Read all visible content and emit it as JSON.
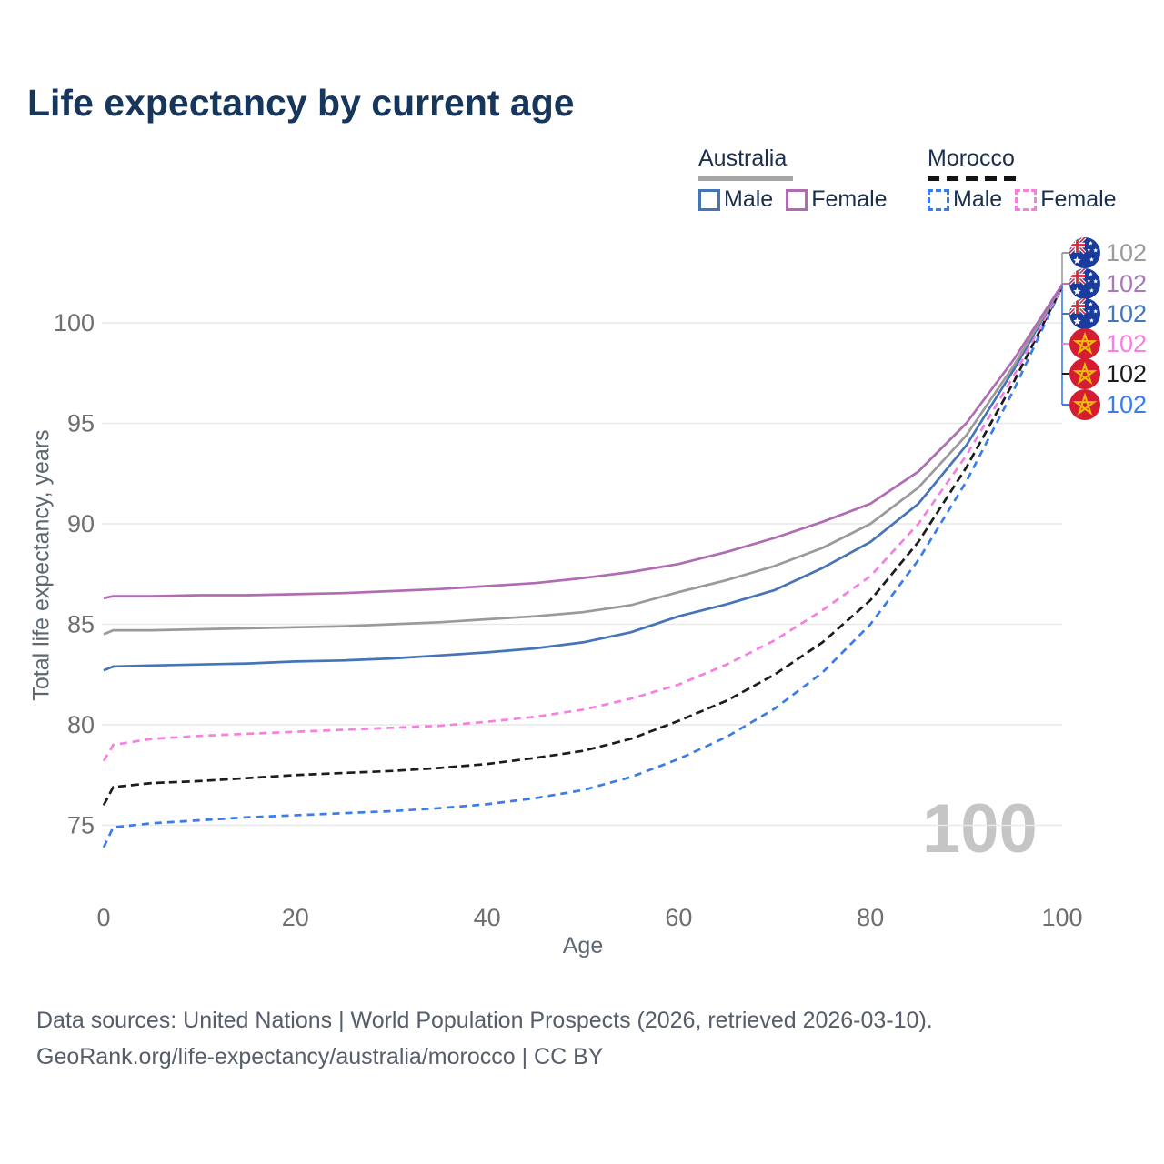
{
  "title": "Life expectancy by current age",
  "legend": {
    "groups": [
      {
        "label": "Australia",
        "underline_style": "solid",
        "underline_color": "#a6a6a6",
        "items": [
          {
            "label": "Male",
            "color": "#4674b8",
            "dashed": false
          },
          {
            "label": "Female",
            "color": "#b06cb3",
            "dashed": false
          }
        ]
      },
      {
        "label": "Morocco",
        "underline_style": "dashed",
        "underline_color": "#141414",
        "items": [
          {
            "label": "Male",
            "color": "#3a7ceb",
            "dashed": true
          },
          {
            "label": "Female",
            "color": "#f77fe0",
            "dashed": true
          }
        ]
      }
    ]
  },
  "watermark": "100",
  "footer": {
    "line1": "Data sources: United Nations | World Population Prospects (2026, retrieved 2026-03-10).",
    "line2": "GeoRank.org/life-expectancy/australia/morocco | CC BY"
  },
  "chart_data": {
    "type": "line",
    "title": "Life expectancy by current age",
    "xlabel": "Age",
    "ylabel": "Total life expectancy, years",
    "x_ticks": [
      "0",
      "20",
      "40",
      "60",
      "80",
      "100"
    ],
    "y_ticks": [
      "75",
      "80",
      "85",
      "90",
      "95",
      "100"
    ],
    "xlim": [
      0,
      100
    ],
    "ylim": [
      73.5,
      103
    ],
    "grid": "horizontal-only",
    "legend_position": "top-right",
    "ages": [
      0,
      1,
      5,
      10,
      15,
      20,
      25,
      30,
      35,
      40,
      45,
      50,
      55,
      60,
      65,
      70,
      75,
      80,
      85,
      90,
      95,
      100
    ],
    "series": [
      {
        "name": "Morocco Male",
        "country": "morocco",
        "sex": "male",
        "color": "#3a7ceb",
        "dash": "8 6",
        "values": [
          73.9,
          74.9,
          75.1,
          75.25,
          75.4,
          75.5,
          75.6,
          75.7,
          75.85,
          76.05,
          76.35,
          76.75,
          77.4,
          78.3,
          79.4,
          80.8,
          82.6,
          85.0,
          88.2,
          92.1,
          96.7,
          101.8
        ]
      },
      {
        "name": "Morocco Both sexes",
        "country": "morocco",
        "sex": "both",
        "color": "#1c1c1c",
        "dash": "9 5",
        "values": [
          76.0,
          76.9,
          77.1,
          77.2,
          77.35,
          77.5,
          77.6,
          77.7,
          77.85,
          78.05,
          78.35,
          78.7,
          79.3,
          80.2,
          81.2,
          82.5,
          84.1,
          86.2,
          89.1,
          92.8,
          97.1,
          101.8
        ]
      },
      {
        "name": "Morocco Female",
        "country": "morocco",
        "sex": "female",
        "color": "#f77fe0",
        "dash": "8 6",
        "values": [
          78.2,
          79.0,
          79.3,
          79.45,
          79.55,
          79.65,
          79.75,
          79.85,
          79.95,
          80.15,
          80.4,
          80.75,
          81.3,
          82.0,
          83.0,
          84.2,
          85.7,
          87.4,
          90.0,
          93.4,
          97.4,
          101.8
        ]
      },
      {
        "name": "Australia Male",
        "country": "australia",
        "sex": "male",
        "color": "#4674b8",
        "dash": null,
        "values": [
          82.7,
          82.9,
          82.95,
          83.0,
          83.05,
          83.15,
          83.2,
          83.3,
          83.45,
          83.6,
          83.8,
          84.1,
          84.6,
          85.4,
          86.0,
          86.7,
          87.8,
          89.1,
          91.0,
          93.9,
          97.7,
          101.9
        ]
      },
      {
        "name": "Australia Both sexes",
        "country": "australia",
        "sex": "both",
        "color": "#9a9a9a",
        "dash": null,
        "values": [
          84.5,
          84.7,
          84.7,
          84.75,
          84.8,
          84.85,
          84.9,
          85.0,
          85.1,
          85.25,
          85.4,
          85.6,
          85.95,
          86.6,
          87.2,
          87.9,
          88.8,
          90.0,
          91.8,
          94.4,
          97.9,
          101.9
        ]
      },
      {
        "name": "Australia Female",
        "country": "australia",
        "sex": "female",
        "color": "#b06cb3",
        "dash": null,
        "values": [
          86.3,
          86.4,
          86.4,
          86.45,
          86.45,
          86.5,
          86.55,
          86.65,
          86.75,
          86.9,
          87.05,
          87.3,
          87.6,
          88.0,
          88.6,
          89.3,
          90.1,
          91.0,
          92.6,
          95.0,
          98.2,
          101.9
        ]
      }
    ],
    "end_labels": [
      {
        "country": "australia",
        "text": "102",
        "color": "#9b9b9b"
      },
      {
        "country": "australia",
        "text": "102",
        "color": "#a87ab4"
      },
      {
        "country": "australia",
        "text": "102",
        "color": "#4674b8"
      },
      {
        "country": "morocco",
        "text": "102",
        "color": "#f77fe0"
      },
      {
        "country": "morocco",
        "text": "102",
        "color": "#1c1c1c"
      },
      {
        "country": "morocco",
        "text": "102",
        "color": "#3a7ceb"
      }
    ]
  }
}
